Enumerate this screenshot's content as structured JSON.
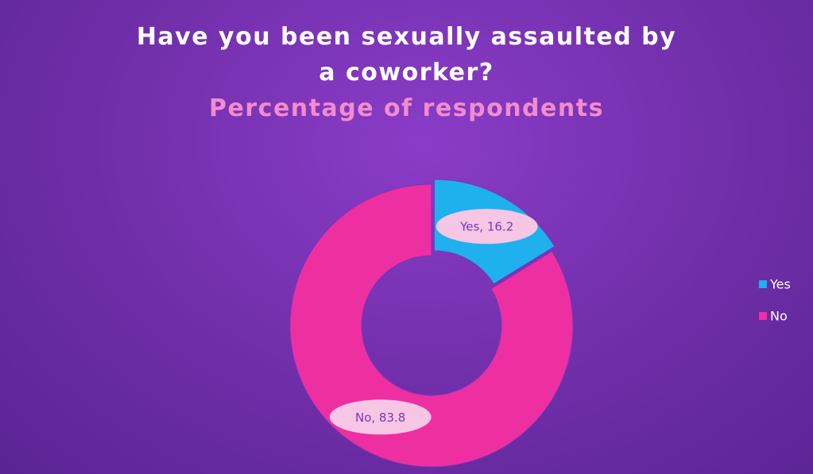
{
  "chart_data": {
    "type": "donut",
    "title": "Have you been sexually assaulted by a coworker?",
    "subtitle": "Percentage of respondents",
    "categories": [
      "Yes",
      "No"
    ],
    "values": [
      16.2,
      83.8
    ],
    "value_labels": [
      "Yes, 16.2",
      "No, 83.8"
    ],
    "colors": [
      "#1eb1ee",
      "#ee2fa2"
    ],
    "legend": "right"
  }
}
